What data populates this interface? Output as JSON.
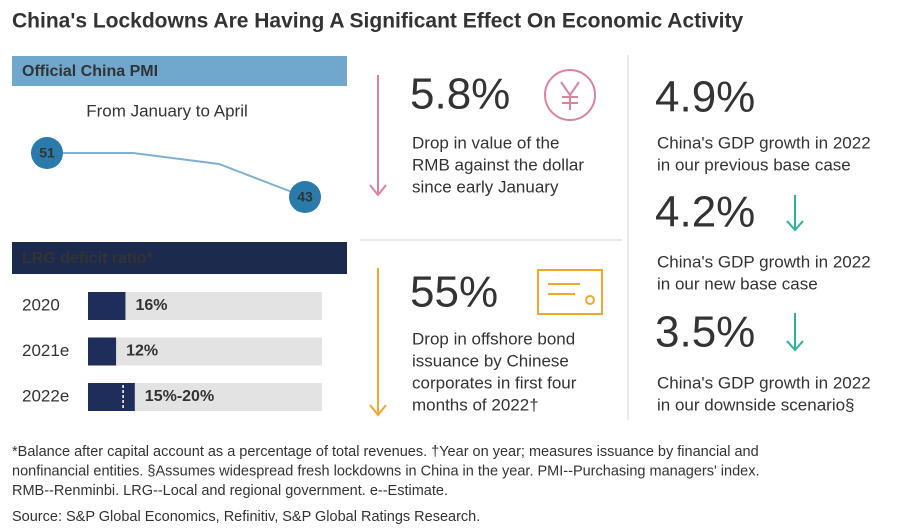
{
  "title": "China's Lockdowns Are Having A Significant Effect On Economic Activity",
  "chart_data": [
    {
      "type": "line",
      "title": "Official China PMI",
      "subtitle": "From January to April",
      "values": [
        51,
        51,
        49,
        43
      ],
      "color": "#7fb0d2",
      "marker_color": "#2a7bab",
      "header_color": "#6fa8cc"
    },
    {
      "type": "bar",
      "title": "LRG deficit ratio*",
      "categories": [
        "2020",
        "2021e",
        "2022e"
      ],
      "values": [
        16,
        12,
        20
      ],
      "range_low": [
        null,
        null,
        15
      ],
      "value_labels": [
        "16%",
        "12%",
        "15%-20%"
      ],
      "xlim": [
        0,
        100
      ],
      "color": "#1f2d5a",
      "track_color": "#e3e3e3",
      "header_color": "#1c2a4e"
    }
  ],
  "stats": [
    {
      "value": "5.8%",
      "color": "#d9849a",
      "description": [
        "Drop in value of the",
        "RMB against the dollar",
        "since early January"
      ]
    },
    {
      "value": "55%",
      "color": "#f0a830",
      "description": [
        "Drop in offshore bond",
        "issuance by Chinese",
        "corporates in first four",
        "months of 2022†"
      ]
    },
    {
      "value": "4.9%",
      "color": "#2bb39a",
      "description": [
        "China's GDP growth in 2022",
        "in our previous base case"
      ]
    },
    {
      "value": "4.2%",
      "color": "#2bb39a",
      "description": [
        "China's GDP growth in 2022",
        "in our new base case"
      ]
    },
    {
      "value": "3.5%",
      "color": "#2bb39a",
      "description": [
        "China's GDP growth in 2022",
        "in our downside scenario§"
      ]
    }
  ],
  "footnote": [
    "*Balance after capital account as a percentage of total revenues. †Year on year; measures issuance by financial and",
    "nonfinancial entities. §Assumes widespread fresh lockdowns in China in the year. PMI--Purchasing managers' index.",
    "RMB--Renminbi. LRG--Local and regional government. e--Estimate."
  ],
  "source": "Source: S&P Global Economics, Refinitiv, S&P Global Ratings Research."
}
